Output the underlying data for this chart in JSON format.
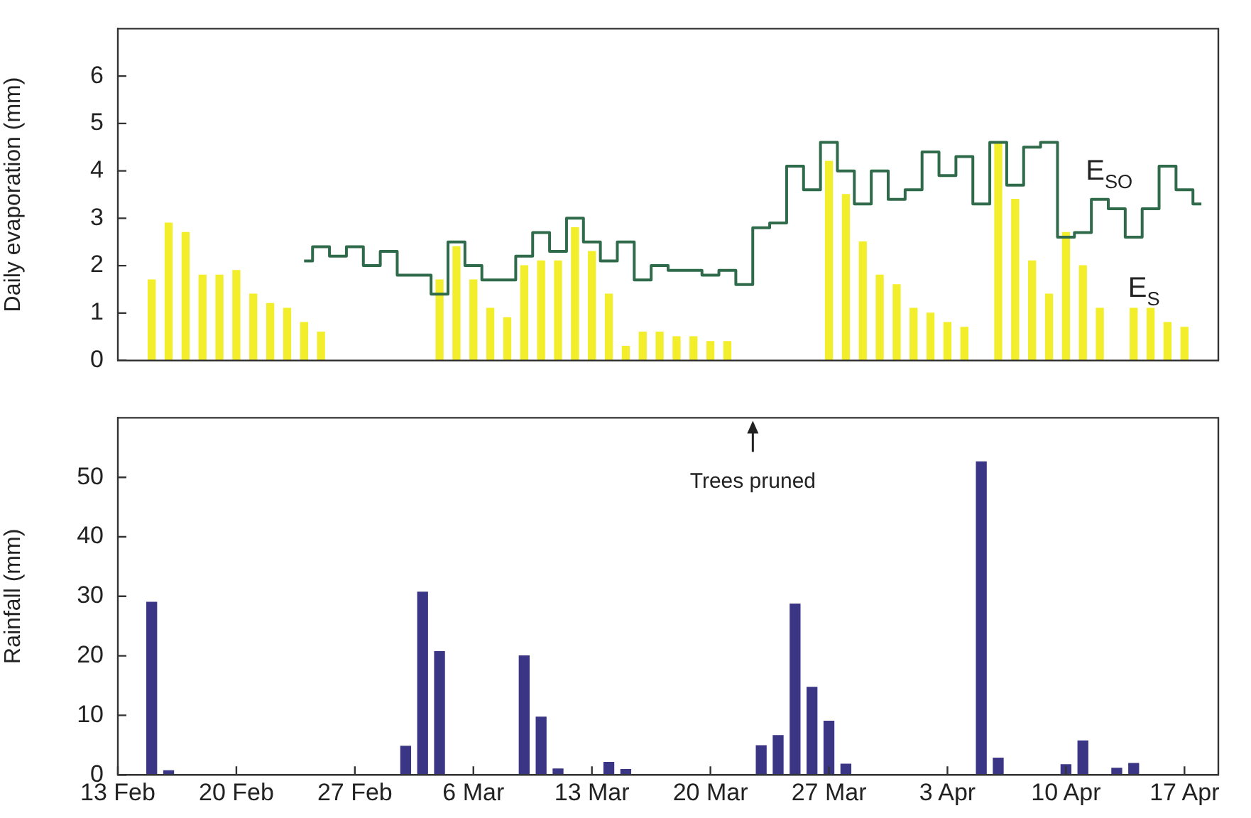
{
  "chart_data": [
    {
      "type": "bar",
      "ylabel": "Daily evaporation (mm)",
      "xlim": [
        "--02-13",
        "--04-19"
      ],
      "ylim": [
        0,
        7
      ],
      "yticks": [
        0,
        1,
        2,
        3,
        4,
        5,
        6
      ],
      "tick_labels": "y",
      "grid": false,
      "legend": false,
      "series": [
        {
          "name": "E$_{S}$",
          "color": "#f3ee2b",
          "x": [
            "--02-15",
            "--02-16",
            "--02-17",
            "--02-18",
            "--02-19",
            "--02-20",
            "--02-21",
            "--02-22",
            "--02-23",
            "--02-24",
            "--02-25",
            "--03-04",
            "--03-05",
            "--03-06",
            "--03-07",
            "--03-08",
            "--03-09",
            "--03-10",
            "--03-11",
            "--03-12",
            "--03-13",
            "--03-14",
            "--03-15",
            "--03-16",
            "--03-17",
            "--03-18",
            "--03-19",
            "--03-20",
            "--03-21",
            "--03-27",
            "--03-28",
            "--03-29",
            "--03-30",
            "--03-31",
            "--04-01",
            "--04-02",
            "--04-03",
            "--04-04",
            "--04-06",
            "--04-07",
            "--04-08",
            "--04-09",
            "--04-10",
            "--04-11",
            "--04-12",
            "--04-14",
            "--04-15",
            "--04-16",
            "--04-17"
          ],
          "values": [
            1.7,
            2.9,
            2.7,
            1.8,
            1.8,
            1.9,
            1.4,
            1.2,
            1.1,
            0.8,
            0.6,
            1.7,
            2.4,
            1.7,
            1.1,
            0.9,
            2.0,
            2.1,
            2.1,
            2.8,
            2.3,
            1.4,
            0.3,
            0.6,
            0.6,
            0.5,
            0.5,
            0.4,
            0.4,
            4.2,
            3.5,
            2.5,
            1.8,
            1.6,
            1.1,
            1.0,
            0.8,
            0.7,
            4.6,
            3.4,
            2.1,
            1.4,
            2.7,
            2.0,
            1.1,
            1.1,
            1.1,
            0.8,
            0.7
          ]
        },
        {
          "type": "step",
          "name": "E$_{SO}$",
          "color": "#2f6b4a",
          "marker": "none",
          "x": [
            "--02-24",
            "--02-25",
            "--02-26",
            "--02-27",
            "--02-28",
            "--03-01",
            "--03-02",
            "--03-03",
            "--03-04",
            "--03-05",
            "--03-06",
            "--03-07",
            "--03-08",
            "--03-09",
            "--03-10",
            "--03-11",
            "--03-12",
            "--03-13",
            "--03-14",
            "--03-15",
            "--03-16",
            "--03-17",
            "--03-18",
            "--03-19",
            "--03-20",
            "--03-21",
            "--03-22",
            "--03-23",
            "--03-24",
            "--03-25",
            "--03-26",
            "--03-27",
            "--03-28",
            "--03-29",
            "--03-30",
            "--03-31",
            "--04-01",
            "--04-02",
            "--04-03",
            "--04-04",
            "--04-05",
            "--04-06",
            "--04-07",
            "--04-08",
            "--04-09",
            "--04-10",
            "--04-11",
            "--04-12",
            "--04-13",
            "--04-14",
            "--04-15",
            "--04-16",
            "--04-17",
            "--04-18"
          ],
          "values": [
            2.1,
            2.4,
            2.2,
            2.4,
            2.0,
            2.3,
            1.8,
            1.8,
            1.4,
            2.5,
            2.0,
            1.7,
            1.7,
            2.2,
            2.7,
            2.3,
            3.0,
            2.5,
            2.1,
            2.5,
            1.7,
            2.0,
            1.9,
            1.9,
            1.8,
            1.9,
            1.6,
            2.8,
            2.9,
            4.1,
            3.6,
            4.6,
            4.0,
            3.3,
            4.0,
            3.4,
            3.6,
            4.4,
            3.9,
            4.3,
            3.3,
            4.6,
            3.7,
            4.5,
            4.6,
            2.6,
            2.7,
            3.4,
            3.2,
            2.6,
            3.2,
            4.1,
            3.6,
            3.3
          ]
        }
      ]
    },
    {
      "type": "bar",
      "ylabel": "Rainfall (mm)",
      "xlim": [
        "--02-13",
        "--04-19"
      ],
      "ylim": [
        0,
        60
      ],
      "yticks": [
        0,
        10,
        20,
        30,
        40,
        50
      ],
      "xticks": [
        {
          "value": "--02-13",
          "label": "13 Feb"
        },
        {
          "value": "--02-20",
          "label": "20 Feb"
        },
        {
          "value": "--02-27",
          "label": "27 Feb"
        },
        {
          "value": "--03-06",
          "label": "6 Mar"
        },
        {
          "value": "--03-13",
          "label": "13 Mar"
        },
        {
          "value": "--03-20",
          "label": "20 Mar"
        },
        {
          "value": "--03-27",
          "label": "27 Mar"
        },
        {
          "value": "--04-03",
          "label": "3 Apr"
        },
        {
          "value": "--04-10",
          "label": "10 Apr"
        },
        {
          "value": "--04-17",
          "label": "17 Apr"
        }
      ],
      "grid": false,
      "legend": false,
      "annotations": [
        "Trees pruned"
      ],
      "series": [
        {
          "color": "#3a3585",
          "x": [
            "--02-15",
            "--02-16",
            "--03-02",
            "--03-03",
            "--03-04",
            "--03-09",
            "--03-10",
            "--03-11",
            "--03-14",
            "--03-15",
            "--03-23",
            "--03-24",
            "--03-25",
            "--03-26",
            "--03-27",
            "--03-28",
            "--04-05",
            "--04-06",
            "--04-10",
            "--04-11",
            "--04-13",
            "--04-14"
          ],
          "values": [
            29,
            0.7,
            4.8,
            30.7,
            20.7,
            20,
            9.7,
            1,
            2.1,
            0.9,
            4.9,
            6.6,
            28.7,
            14.7,
            9,
            1.8,
            52.6,
            2.8,
            1.7,
            5.7,
            1.1,
            1.9
          ]
        }
      ]
    }
  ]
}
